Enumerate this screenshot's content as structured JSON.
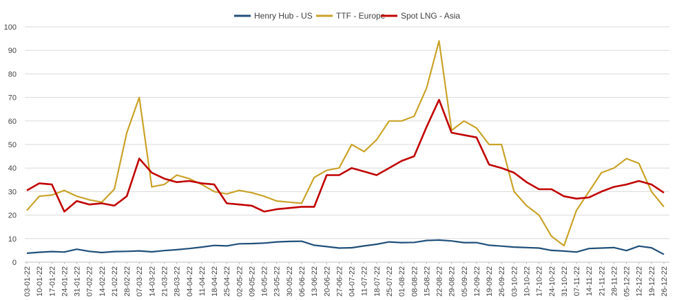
{
  "chart_data": {
    "type": "line",
    "title": "",
    "xlabel": "",
    "ylabel": "",
    "ylim": [
      0,
      100
    ],
    "grid": true,
    "legend_position": "top-center",
    "yticks": [
      0,
      10,
      20,
      30,
      40,
      50,
      60,
      70,
      80,
      90,
      100
    ],
    "categories": [
      "03-01-22",
      "10-01-22",
      "17-01-22",
      "24-01-22",
      "31-01-22",
      "07-02-22",
      "14-02-22",
      "21-02-22",
      "28-02-22",
      "07-03-22",
      "14-03-22",
      "21-03-22",
      "28-03-22",
      "04-04-22",
      "11-04-22",
      "18-04-22",
      "25-04-22",
      "02-05-22",
      "09-05-22",
      "16-05-22",
      "23-05-22",
      "30-05-22",
      "06-06-22",
      "13-06-22",
      "20-06-22",
      "27-06-22",
      "04-07-22",
      "11-07-22",
      "18-07-22",
      "25-07-22",
      "01-08-22",
      "08-08-22",
      "15-08-22",
      "22-08-22",
      "29-08-22",
      "05-09-22",
      "12-09-22",
      "19-09-22",
      "26-09-22",
      "03-10-22",
      "10-10-22",
      "17-10-22",
      "24-10-22",
      "31-10-22",
      "07-11-22",
      "14-11-22",
      "21-11-22",
      "28-11-22",
      "05-12-22",
      "12-12-22",
      "19-12-22",
      "26-12-22"
    ],
    "series": [
      {
        "name": "Henry Hub - US",
        "color": "#1F4E79",
        "values": [
          3.8,
          4.2,
          4.5,
          4.3,
          5.5,
          4.6,
          4.1,
          4.5,
          4.6,
          4.8,
          4.4,
          4.9,
          5.3,
          5.8,
          6.4,
          7.1,
          6.9,
          7.8,
          7.9,
          8.1,
          8.6,
          8.8,
          8.9,
          7.2,
          6.6,
          6.0,
          6.1,
          6.9,
          7.6,
          8.6,
          8.3,
          8.4,
          9.2,
          9.4,
          9.0,
          8.3,
          8.3,
          7.2,
          6.8,
          6.4,
          6.2,
          6.0,
          5.0,
          4.7,
          4.3,
          5.8,
          6.0,
          6.2,
          4.9,
          6.8,
          6.1,
          3.3
        ]
      },
      {
        "name": "TTF - Europe",
        "color": "#C9A227",
        "values": [
          22.0,
          28.0,
          28.5,
          30.5,
          28.0,
          26.5,
          25.5,
          31.0,
          55.0,
          70.0,
          32.0,
          33.0,
          37.0,
          35.5,
          33.0,
          30.0,
          29.0,
          30.5,
          29.5,
          28.0,
          26.0,
          25.5,
          25.0,
          36.0,
          39.0,
          40.0,
          50.0,
          47.0,
          52.0,
          60.0,
          60.0,
          62.0,
          74.0,
          94.0,
          56.0,
          60.0,
          57.0,
          50.0,
          50.0,
          30.0,
          24.0,
          20.0,
          11.0,
          7.0,
          22.0,
          30.0,
          38.0,
          40.0,
          44.0,
          42.0,
          30.0,
          23.5
        ]
      },
      {
        "name": "Spot LNG - Asia",
        "color": "#C00000",
        "values": [
          30.5,
          33.5,
          33.0,
          21.5,
          26.0,
          24.5,
          25.0,
          24.0,
          28.0,
          44.0,
          38.0,
          35.5,
          34.0,
          34.5,
          33.5,
          33.0,
          25.0,
          24.5,
          24.0,
          21.5,
          22.5,
          23.0,
          23.5,
          23.5,
          37.0,
          37.0,
          40.0,
          38.5,
          37.0,
          40.0,
          43.0,
          45.0,
          57.5,
          69.0,
          55.0,
          54.0,
          53.0,
          41.5,
          40.0,
          38.0,
          34.0,
          31.0,
          31.0,
          28.0,
          27.0,
          27.5,
          30.0,
          32.0,
          33.0,
          34.5,
          33.0,
          29.5
        ]
      }
    ]
  }
}
